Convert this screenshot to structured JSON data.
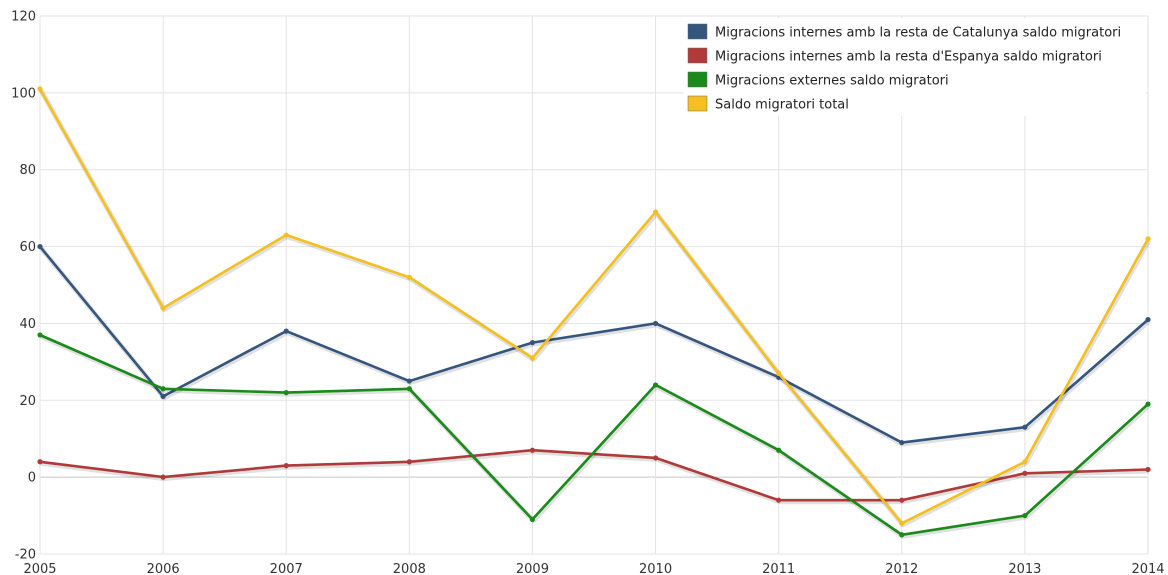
{
  "chart_data": {
    "type": "line",
    "title": "",
    "xlabel": "",
    "ylabel": "",
    "categories": [
      "2005",
      "2006",
      "2007",
      "2008",
      "2009",
      "2010",
      "2011",
      "2012",
      "2013",
      "2014"
    ],
    "ylim": [
      -20,
      120
    ],
    "yticks": [
      -20,
      0,
      20,
      40,
      60,
      80,
      100,
      120
    ],
    "grid": true,
    "legend_position": "top-right",
    "series": [
      {
        "name": "Migracions internes amb la resta de Catalunya saldo migratori",
        "color": "#34557d",
        "values": [
          60,
          21,
          38,
          25,
          35,
          40,
          26,
          9,
          13,
          41
        ]
      },
      {
        "name": "Migracions internes amb la resta d'Espanya saldo migratori",
        "color": "#b03a3a",
        "values": [
          4,
          0,
          3,
          4,
          7,
          5,
          -6,
          -6,
          1,
          2
        ]
      },
      {
        "name": "Migracions externes saldo migratori",
        "color": "#1a8a1a",
        "values": [
          37,
          23,
          22,
          23,
          -11,
          24,
          7,
          -15,
          -10,
          19
        ]
      },
      {
        "name": "Saldo migratori total",
        "color": "#f5bf1e",
        "values": [
          101,
          44,
          63,
          52,
          31,
          69,
          27,
          -12,
          4,
          62
        ]
      }
    ]
  }
}
